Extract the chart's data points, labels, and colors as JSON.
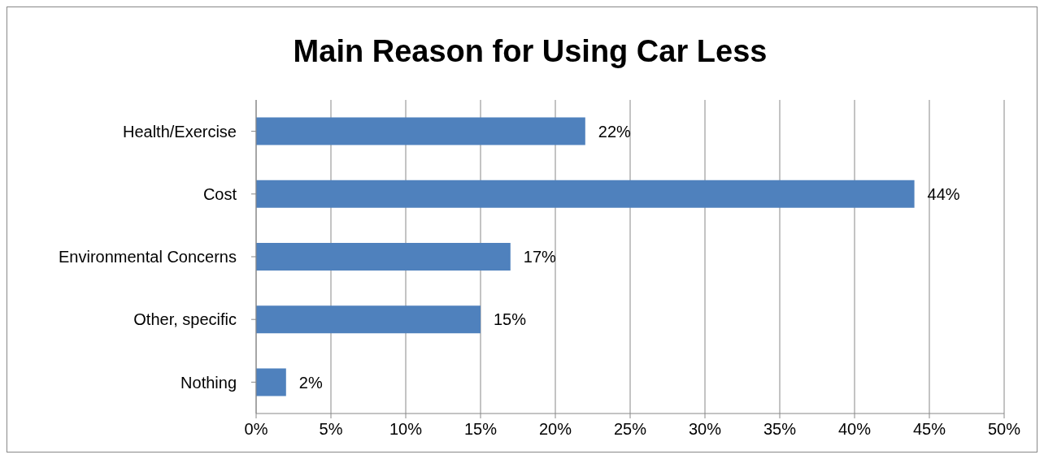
{
  "chart_data": {
    "type": "bar",
    "orientation": "horizontal",
    "title": "Main Reason for Using Car Less",
    "categories": [
      "Health/Exercise",
      "Cost",
      "Environmental Concerns",
      "Other, specific",
      "Nothing"
    ],
    "values": [
      22,
      44,
      17,
      15,
      2
    ],
    "color": "#4f81bd",
    "value_labels": [
      "22%",
      "44%",
      "17%",
      "15%",
      "2%"
    ],
    "xlim": [
      0,
      50
    ],
    "xticks": [
      {
        "value": 0,
        "label": "0%"
      },
      {
        "value": 5,
        "label": "5%"
      },
      {
        "value": 10,
        "label": "10%"
      },
      {
        "value": 15,
        "label": "15%"
      },
      {
        "value": 20,
        "label": "20%"
      },
      {
        "value": 25,
        "label": "25%"
      },
      {
        "value": 30,
        "label": "30%"
      },
      {
        "value": 35,
        "label": "35%"
      },
      {
        "value": 40,
        "label": "40%"
      },
      {
        "value": 45,
        "label": "45%"
      },
      {
        "value": 50,
        "label": "50%"
      }
    ],
    "grid": "x",
    "legend": false
  }
}
